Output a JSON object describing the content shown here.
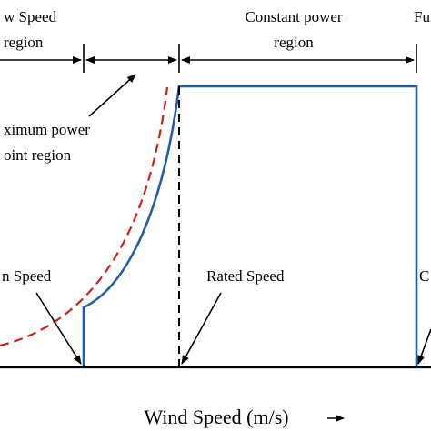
{
  "diagram": {
    "regions": {
      "low_speed_line1": "w Speed",
      "low_speed_line2": "region",
      "constant_power_line1": "Constant power",
      "constant_power_line2": "region",
      "furling_partial": "Fu"
    },
    "annotations": {
      "mppt_line1": "ximum power",
      "mppt_line2": "oint region",
      "cut_in": "n Speed",
      "rated": "Rated Speed",
      "cut_out_partial": "C"
    },
    "x_axis_label": "Wind Speed (m/s)",
    "colors": {
      "actual_power": "#1f5fa8",
      "available_power": "#cc1f1f",
      "axis": "#000000"
    }
  }
}
